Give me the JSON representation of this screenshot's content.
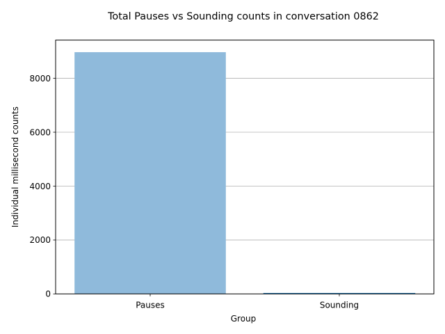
{
  "chart_data": {
    "type": "bar",
    "title": "Total Pauses vs Sounding counts in conversation 0862",
    "xlabel": "Group",
    "ylabel": "Individual millisecond counts",
    "categories": [
      "Pauses",
      "Sounding"
    ],
    "values": [
      8970,
      25
    ],
    "ylim": [
      0,
      9418.5
    ],
    "yticks": [
      0,
      2000,
      4000,
      6000,
      8000
    ],
    "ytick_labels": [
      "0",
      "2000",
      "4000",
      "6000",
      "8000"
    ],
    "grid": "horizontal",
    "colors": {
      "bar_fill": "#8fbadb",
      "bar_edge": "#1f77b4",
      "grid": "#b0b0b0",
      "axis": "#000000"
    }
  }
}
